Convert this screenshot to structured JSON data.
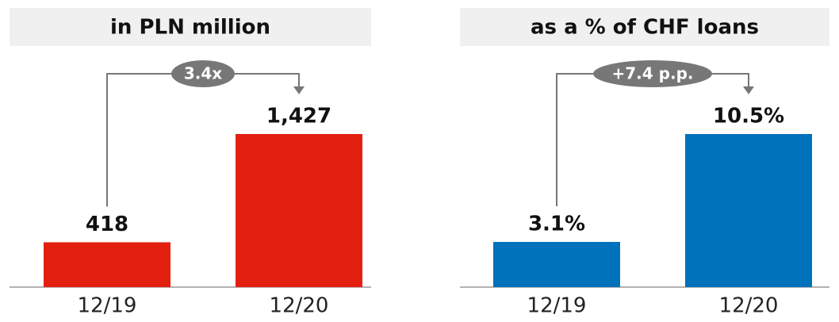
{
  "chart_data": [
    {
      "type": "bar",
      "title": "in PLN million",
      "categories": [
        "12/19",
        "12/20"
      ],
      "values": [
        418,
        1427
      ],
      "value_labels": [
        "418",
        "1,427"
      ],
      "color": "#e3200f",
      "annotation": "3.4x"
    },
    {
      "type": "bar",
      "title": "as a % of CHF loans",
      "categories": [
        "12/19",
        "12/20"
      ],
      "values": [
        3.1,
        10.5
      ],
      "value_labels": [
        "3.1%",
        "10.5%"
      ],
      "color": "#0071bb",
      "annotation": "+7.4 p.p."
    }
  ]
}
